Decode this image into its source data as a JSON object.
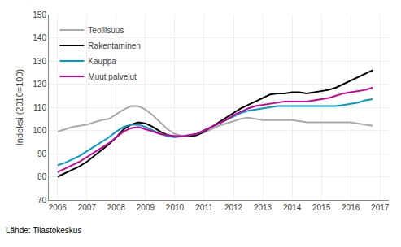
{
  "chart_data": {
    "type": "line",
    "ylabel": "Indeksi (2010=100)",
    "source": "Lähde: Tilastokeskus",
    "x": [
      2006,
      2006.25,
      2006.5,
      2006.75,
      2007,
      2007.25,
      2007.5,
      2007.75,
      2008,
      2008.25,
      2008.5,
      2008.75,
      2009,
      2009.25,
      2009.5,
      2009.75,
      2010,
      2010.25,
      2010.5,
      2010.75,
      2011,
      2011.25,
      2011.5,
      2011.75,
      2012,
      2012.25,
      2012.5,
      2012.75,
      2013,
      2013.25,
      2013.5,
      2013.75,
      2014,
      2014.25,
      2014.5,
      2014.75,
      2015,
      2015.25,
      2015.5,
      2015.75,
      2016,
      2016.25,
      2016.5,
      2016.75
    ],
    "xlim": [
      2005.7,
      2017.3
    ],
    "xticks": [
      2006,
      2007,
      2008,
      2009,
      2010,
      2011,
      2012,
      2013,
      2014,
      2015,
      2016,
      2017
    ],
    "ylim": [
      70,
      150
    ],
    "yticks": [
      70,
      80,
      90,
      100,
      110,
      120,
      130,
      140,
      150
    ],
    "grid": true,
    "legend": "upper left",
    "series": [
      {
        "name": "Teollisuus",
        "color": "#aaaaaa",
        "values": [
          99.5,
          100.5,
          101.5,
          102.0,
          102.5,
          103.5,
          104.5,
          105.0,
          107.0,
          109.0,
          110.5,
          110.5,
          109.0,
          106.5,
          103.5,
          100.5,
          98.5,
          97.5,
          97.5,
          98.0,
          99.0,
          100.5,
          102.0,
          103.0,
          104.0,
          105.0,
          105.5,
          105.0,
          104.5,
          104.5,
          104.5,
          104.5,
          104.5,
          104.0,
          103.5,
          103.5,
          103.5,
          103.5,
          103.5,
          103.5,
          103.5,
          103.0,
          102.5,
          102.0
        ]
      },
      {
        "name": "Rakentaminen",
        "color": "#000000",
        "values": [
          80.0,
          81.5,
          83.0,
          84.5,
          86.5,
          89.0,
          91.5,
          94.0,
          97.0,
          100.5,
          102.5,
          103.5,
          103.0,
          101.5,
          99.5,
          98.0,
          97.5,
          97.5,
          97.5,
          98.0,
          99.5,
          101.5,
          103.5,
          105.5,
          107.5,
          109.5,
          111.0,
          112.5,
          114.0,
          115.5,
          116.0,
          116.0,
          116.5,
          116.5,
          116.0,
          116.5,
          117.0,
          117.5,
          118.5,
          120.0,
          121.5,
          123.0,
          124.5,
          126.0
        ]
      },
      {
        "name": "Kauppa",
        "color": "#009ac7",
        "values": [
          85.0,
          86.0,
          87.5,
          89.0,
          91.0,
          93.0,
          95.0,
          97.0,
          99.5,
          101.5,
          102.5,
          102.5,
          101.5,
          100.0,
          98.5,
          97.5,
          97.0,
          97.5,
          98.0,
          98.5,
          100.0,
          101.5,
          103.0,
          104.5,
          106.0,
          107.5,
          108.5,
          109.0,
          109.5,
          110.0,
          110.5,
          110.5,
          110.5,
          110.5,
          110.5,
          110.5,
          110.5,
          110.5,
          110.5,
          111.0,
          111.5,
          112.0,
          113.0,
          113.5
        ]
      },
      {
        "name": "Muut palvelut",
        "color": "#cc0099",
        "values": [
          82.0,
          83.5,
          85.0,
          86.5,
          88.5,
          90.5,
          92.5,
          94.5,
          97.0,
          99.5,
          101.0,
          101.5,
          100.5,
          99.5,
          98.5,
          98.0,
          97.5,
          97.5,
          98.0,
          98.5,
          100.0,
          101.5,
          103.0,
          104.5,
          106.5,
          108.0,
          109.5,
          110.5,
          111.0,
          111.5,
          112.0,
          112.5,
          112.5,
          112.5,
          112.5,
          113.0,
          113.5,
          114.0,
          115.0,
          116.0,
          116.5,
          117.0,
          117.5,
          118.5
        ]
      }
    ]
  }
}
